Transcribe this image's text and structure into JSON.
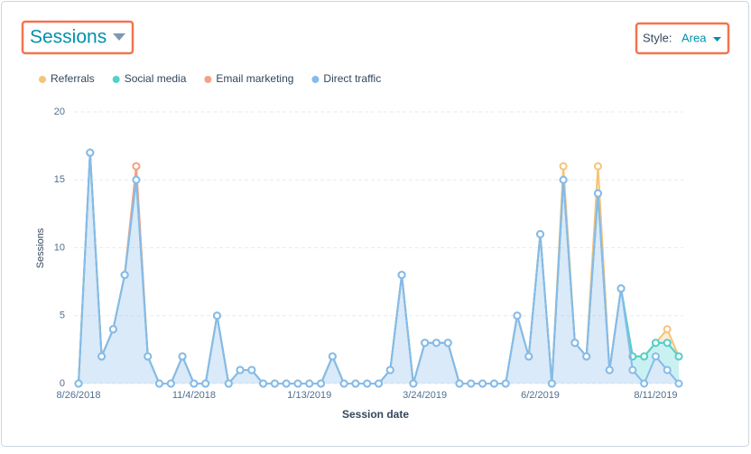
{
  "controls": {
    "metric": "Sessions",
    "style_label": "Style:",
    "style_value": "Area"
  },
  "chart_data": {
    "type": "stacked-area",
    "x_label": "Session date",
    "y_label": "Sessions",
    "categories": [
      "8/26/2018",
      null,
      null,
      null,
      null,
      null,
      null,
      null,
      null,
      null,
      "11/4/2018",
      null,
      null,
      null,
      null,
      null,
      null,
      null,
      null,
      null,
      "1/13/2019",
      null,
      null,
      null,
      null,
      null,
      null,
      null,
      null,
      null,
      "3/24/2019",
      null,
      null,
      null,
      null,
      null,
      null,
      null,
      null,
      null,
      "6/2/2019",
      null,
      null,
      null,
      null,
      null,
      null,
      null,
      null,
      null,
      "8/11/2019",
      null,
      null
    ],
    "series": [
      {
        "name": "Referrals",
        "color": "#f5c47a",
        "values": [
          0,
          0,
          0,
          0,
          0,
          0,
          0,
          0,
          0,
          0,
          0,
          0,
          0,
          0,
          0,
          0,
          0,
          0,
          0,
          0,
          0,
          0,
          0,
          0,
          0,
          0,
          0,
          0,
          0,
          0,
          0,
          0,
          0,
          0,
          0,
          0,
          0,
          0,
          0,
          0,
          0,
          0,
          1,
          0,
          0,
          2,
          0,
          0,
          0,
          0,
          0,
          1,
          0
        ]
      },
      {
        "name": "Social media",
        "color": "#4fd2cf",
        "values": [
          0,
          0,
          0,
          0,
          0,
          0,
          0,
          0,
          0,
          0,
          0,
          0,
          0,
          0,
          0,
          0,
          0,
          0,
          0,
          0,
          0,
          0,
          0,
          0,
          0,
          0,
          0,
          0,
          0,
          0,
          0,
          0,
          0,
          0,
          0,
          0,
          0,
          0,
          0,
          0,
          0,
          0,
          0,
          0,
          0,
          0,
          0,
          0,
          1,
          2,
          1,
          2,
          2
        ]
      },
      {
        "name": "Email marketing",
        "color": "#f2a285",
        "values": [
          0,
          0,
          0,
          0,
          0,
          1,
          0,
          0,
          0,
          0,
          0,
          0,
          0,
          0,
          0,
          0,
          0,
          0,
          0,
          0,
          0,
          0,
          0,
          0,
          0,
          0,
          0,
          0,
          0,
          0,
          0,
          0,
          0,
          0,
          0,
          0,
          0,
          0,
          0,
          0,
          0,
          0,
          0,
          0,
          0,
          0,
          0,
          0,
          0,
          0,
          0,
          0,
          0
        ]
      },
      {
        "name": "Direct traffic",
        "color": "#86bbea",
        "values": [
          0,
          17,
          2,
          4,
          8,
          15,
          2,
          0,
          0,
          2,
          0,
          0,
          5,
          0,
          1,
          1,
          0,
          0,
          0,
          0,
          0,
          0,
          2,
          0,
          0,
          0,
          0,
          1,
          8,
          0,
          3,
          3,
          3,
          0,
          0,
          0,
          0,
          0,
          5,
          2,
          11,
          0,
          15,
          3,
          2,
          14,
          1,
          7,
          1,
          0,
          2,
          1,
          0
        ]
      }
    ],
    "stack_order": [
      "Direct traffic",
      "Social media",
      "Email marketing",
      "Referrals"
    ],
    "ylim": [
      0,
      20
    ],
    "yticks": [
      0,
      5,
      10,
      15,
      20
    ],
    "grid": true
  }
}
